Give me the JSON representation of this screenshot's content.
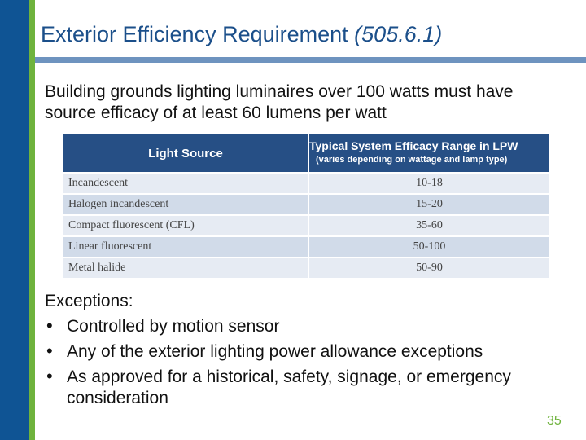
{
  "slide": {
    "title_main": "Exterior Efficiency Requirement ",
    "title_code": "(505.6.1)",
    "intro": "Building grounds lighting luminaires over 100 watts must have source efficacy of at least 60 lumens per watt",
    "page_number": "35"
  },
  "table": {
    "header_source": "Light Source",
    "header_range": "Typical System Efficacy Range in LPW",
    "header_range_note": "(varies depending on wattage and lamp type)",
    "rows": [
      {
        "source": "Incandescent",
        "range": "10-18"
      },
      {
        "source": "Halogen incandescent",
        "range": "15-20"
      },
      {
        "source": "Compact fluorescent (CFL)",
        "range": "35-60"
      },
      {
        "source": "Linear fluorescent",
        "range": "50-100"
      },
      {
        "source": "Metal halide",
        "range": "50-90"
      }
    ]
  },
  "exceptions": {
    "heading": "Exceptions:",
    "items": [
      "Controlled by motion sensor",
      "Any of the exterior lighting power allowance exceptions",
      "As approved for a historical, safety, signage, or emergency consideration"
    ]
  },
  "colors": {
    "sidebar_blue": "#0f5494",
    "accent_green": "#6fb33d",
    "title_bar": "#6e93bf",
    "table_header": "#264f85"
  }
}
